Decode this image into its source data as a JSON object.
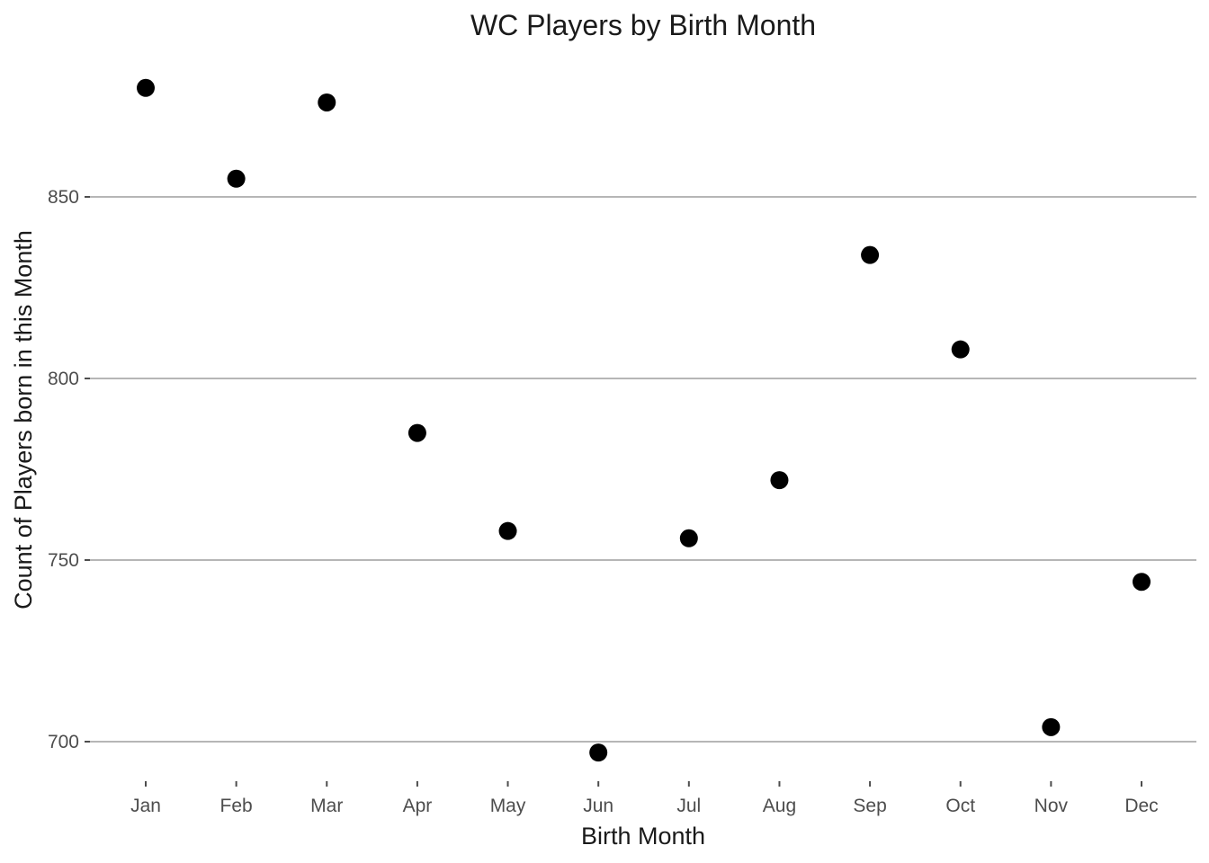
{
  "chart_data": {
    "type": "scatter",
    "title": "WC Players by Birth Month",
    "xlabel": "Birth Month",
    "ylabel": "Count of Players born in this Month",
    "categories": [
      "Jan",
      "Feb",
      "Mar",
      "Apr",
      "May",
      "Jun",
      "Jul",
      "Aug",
      "Sep",
      "Oct",
      "Nov",
      "Dec"
    ],
    "values": [
      880,
      855,
      876,
      785,
      758,
      697,
      756,
      772,
      834,
      808,
      704,
      744
    ],
    "ylim": [
      690,
      895
    ],
    "yticks": [
      700,
      750,
      800,
      850
    ],
    "grid": "horizontal major",
    "point_color": "#000000"
  }
}
